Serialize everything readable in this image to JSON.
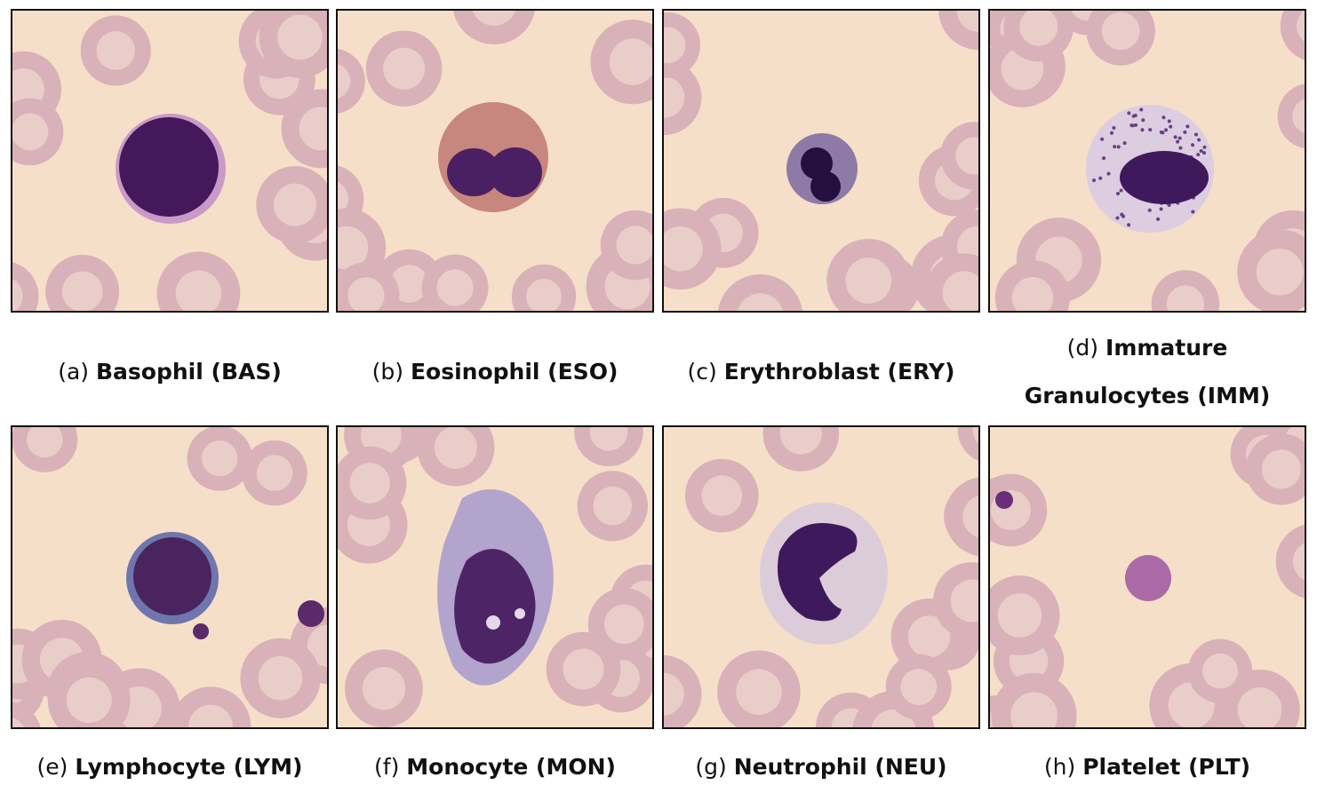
{
  "panels": [
    {
      "label": "(a)",
      "name": "Basophil (BAS)"
    },
    {
      "label": "(b)",
      "name": "Eosinophil (ESO)"
    },
    {
      "label": "(c)",
      "name": "Erythroblast (ERY)"
    },
    {
      "label": "(d)",
      "name": "Immature Granulocytes (IMM)"
    },
    {
      "label": "(e)",
      "name": "Lymphocyte (LYM)"
    },
    {
      "label": "(f)",
      "name": "Monocyte (MON)"
    },
    {
      "label": "(g)",
      "name": "Neutrophil (NEU)"
    },
    {
      "label": "(h)",
      "name": "Platelet (PLT)"
    }
  ]
}
